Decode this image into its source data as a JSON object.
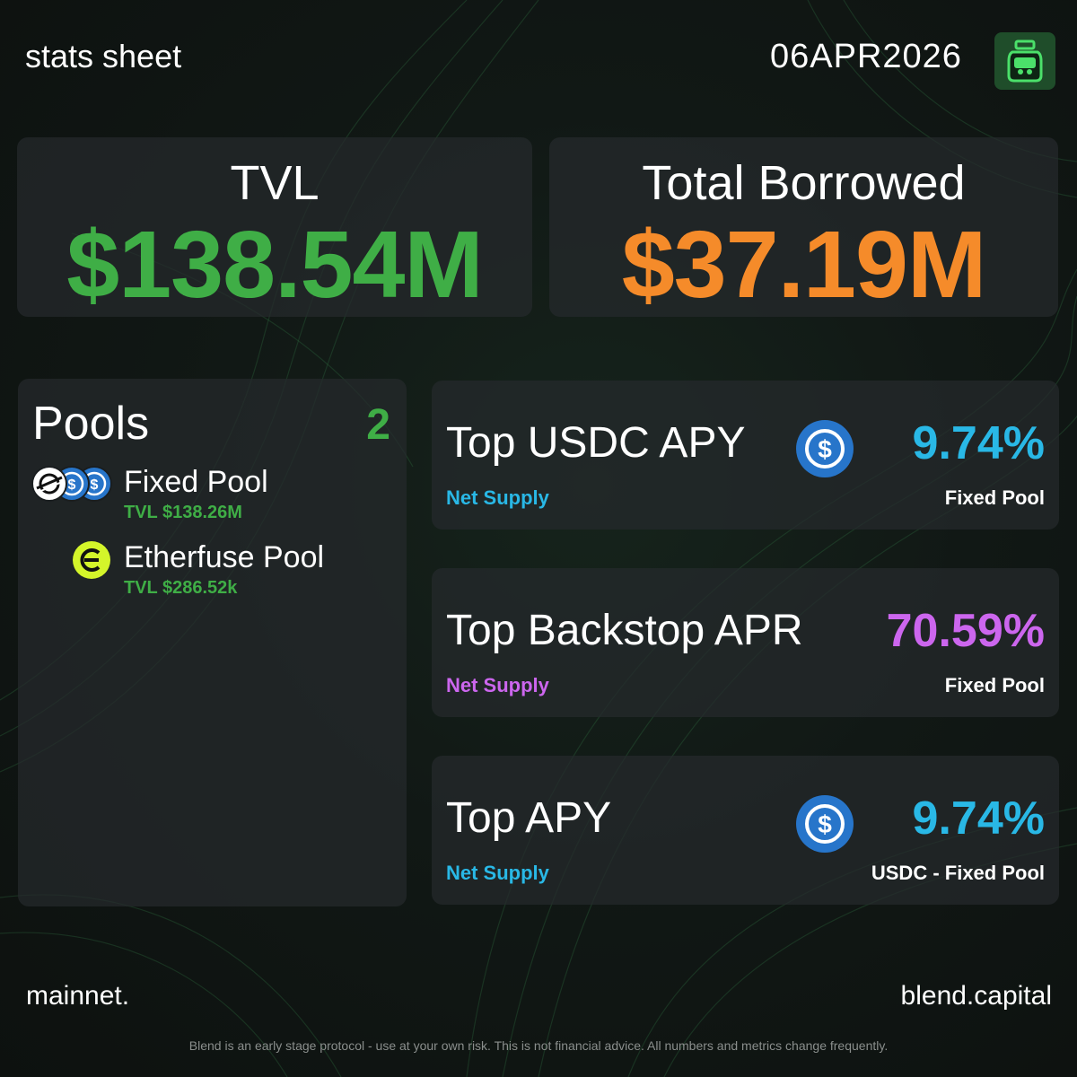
{
  "header": {
    "title": "stats sheet",
    "date": "06APR2026"
  },
  "summary": {
    "tvl": {
      "label": "TVL",
      "value": "$138.54M"
    },
    "borrowed": {
      "label": "Total Borrowed",
      "value": "$37.19M"
    }
  },
  "pools": {
    "title": "Pools",
    "count": "2",
    "items": [
      {
        "name": "Fixed Pool",
        "tvl": "TVL $138.26M"
      },
      {
        "name": "Etherfuse Pool",
        "tvl": "TVL $286.52k"
      }
    ]
  },
  "metrics": [
    {
      "title": "Top USDC APY",
      "value": "9.74%",
      "sub": "Net Supply",
      "pool": "Fixed Pool",
      "icon": "usdc-icon",
      "color": "#29b8e6"
    },
    {
      "title": "Top Backstop APR",
      "value": "70.59%",
      "sub": "Net Supply",
      "pool": "Fixed Pool",
      "color": "#cc66ee"
    },
    {
      "title": "Top APY",
      "value": "9.74%",
      "sub": "Net Supply",
      "pool": "USDC - Fixed Pool",
      "icon": "usdc-icon",
      "color": "#29b8e6"
    }
  ],
  "footer": {
    "network": "mainnet.",
    "site": "blend.capital",
    "disclaimer": "Blend is an early stage protocol - use at your own risk. This is not financial advice. All numbers and metrics change frequently."
  },
  "colors": {
    "green": "#3fae46",
    "orange": "#f58b2a",
    "cyan": "#29b8e6",
    "purple": "#cc66ee",
    "usdc": "#2775ca",
    "etherfuse": "#d4f52a"
  }
}
